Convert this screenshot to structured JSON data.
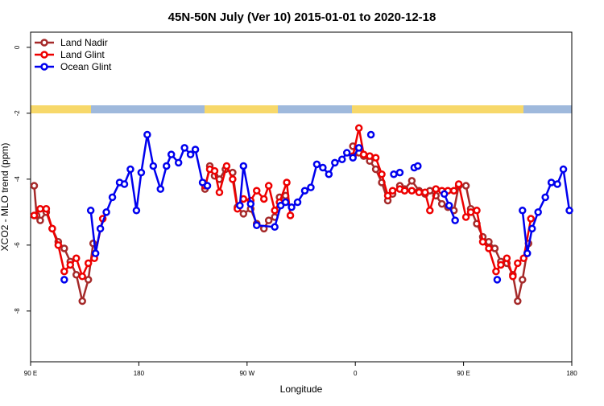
{
  "chart_data": {
    "type": "line",
    "title": "45N-50N July (Ver 10)   2015-01-01 to 2020-12-18",
    "x_label": "Longitude",
    "y_label": "XCO2 - MLO trend (ppm)",
    "xlim": [
      90,
      540
    ],
    "ylim": [
      -9.54,
      0.46
    ],
    "xticks": [
      {
        "value": 90,
        "label": "90 E"
      },
      {
        "value": 180,
        "label": "180"
      },
      {
        "value": 270,
        "label": "90 W"
      },
      {
        "value": 360,
        "label": "0"
      },
      {
        "value": 450,
        "label": "90 E"
      },
      {
        "value": 540,
        "label": "180"
      }
    ],
    "yticks": [
      0,
      -2,
      -4,
      -6,
      -8
    ],
    "legend": "top-left",
    "series": [
      {
        "name": "Land Nadir",
        "color": "#a52a2a",
        "x": [
          93,
          95,
          98,
          103,
          108,
          113,
          118,
          123,
          128,
          133,
          138,
          142,
          null,
          235,
          239,
          243,
          247,
          252,
          258,
          262,
          267,
          273,
          278,
          284,
          288,
          293,
          297,
          302,
          null,
          358,
          363,
          367,
          372,
          377,
          382,
          387,
          391,
          397,
          401,
          407,
          413,
          418,
          422,
          427,
          432,
          437,
          442,
          446,
          452,
          456,
          461,
          466,
          471,
          476,
          481,
          486,
          491,
          495,
          499,
          504
        ],
        "values": [
          -4.2,
          -5.1,
          -5.25,
          -5.0,
          -5.5,
          -5.9,
          -6.1,
          -6.5,
          -6.9,
          -7.7,
          -7.05,
          -5.95,
          null,
          -4.3,
          -3.6,
          -3.9,
          -4.0,
          -3.7,
          -3.8,
          -4.85,
          -5.05,
          -4.9,
          -5.35,
          -5.5,
          -5.25,
          -5.15,
          -4.55,
          -4.5,
          null,
          -3.0,
          -3.2,
          -3.3,
          -3.45,
          -3.7,
          -4.1,
          -4.65,
          -4.45,
          -4.2,
          -4.3,
          -4.05,
          -4.35,
          -4.45,
          -4.35,
          -4.5,
          -4.75,
          -4.85,
          -4.95,
          -4.2,
          -4.2,
          -4.9,
          -5.35,
          -5.75,
          -5.9,
          -6.1,
          -6.5,
          -6.55,
          -6.9,
          -7.7,
          -7.05,
          -5.95
        ]
      },
      {
        "name": "Land Glint",
        "color": "#ee0000",
        "x": [
          93,
          98,
          103,
          108,
          113,
          118,
          123,
          128,
          133,
          138,
          143,
          150,
          null,
          235,
          239,
          243,
          247,
          253,
          258,
          262,
          267,
          273,
          278,
          284,
          288,
          293,
          297,
          303,
          306,
          null,
          358,
          363,
          367,
          372,
          377,
          382,
          387,
          391,
          397,
          401,
          407,
          413,
          418,
          422,
          427,
          432,
          437,
          442,
          446,
          452,
          456,
          461,
          466,
          471,
          477,
          481,
          486,
          491,
          495,
          500,
          506
        ],
        "values": [
          -5.1,
          -4.9,
          -4.9,
          -5.5,
          -6.0,
          -6.8,
          -6.6,
          -6.4,
          -6.95,
          -6.55,
          -6.4,
          -5.2,
          null,
          -4.2,
          -3.7,
          -3.75,
          -4.4,
          -3.6,
          -4.0,
          -4.9,
          -4.6,
          -4.65,
          -4.35,
          -4.6,
          -4.2,
          -4.95,
          -4.7,
          -4.1,
          -5.1,
          null,
          -3.3,
          -2.45,
          -3.25,
          -3.3,
          -3.35,
          -3.85,
          -4.5,
          -4.35,
          -4.3,
          -4.35,
          -4.35,
          -4.4,
          -4.4,
          -4.95,
          -4.3,
          -4.35,
          -4.35,
          -4.35,
          -4.15,
          -5.15,
          -5.0,
          -4.95,
          -5.9,
          -6.1,
          -6.8,
          -6.6,
          -6.4,
          -6.95,
          -6.55,
          -6.4,
          -5.2
        ]
      },
      {
        "name": "Ocean Glint",
        "color": "#0000ee",
        "x": [
          118,
          null,
          140,
          144,
          148,
          153,
          158,
          164,
          168,
          173,
          178,
          182,
          187,
          192,
          198,
          203,
          207,
          213,
          218,
          223,
          227,
          233,
          237,
          null,
          264,
          267,
          273,
          278,
          293,
          298,
          302,
          307,
          312,
          318,
          323,
          328,
          333,
          338,
          343,
          349,
          353,
          358,
          363,
          null,
          373,
          null,
          392,
          397,
          null,
          409,
          412,
          null,
          434,
          438,
          443,
          null,
          478,
          null,
          499,
          503,
          507,
          512,
          518,
          523,
          528,
          533,
          538
        ],
        "values": [
          -7.05,
          null,
          -4.95,
          -6.25,
          -5.5,
          -5.0,
          -4.55,
          -4.1,
          -4.15,
          -3.7,
          -4.95,
          -3.8,
          -2.65,
          -3.6,
          -4.3,
          -3.6,
          -3.25,
          -3.5,
          -3.05,
          -3.25,
          -3.1,
          -4.1,
          -4.2,
          null,
          -4.8,
          -3.6,
          -4.75,
          -5.4,
          -5.45,
          -4.8,
          -4.7,
          -4.85,
          -4.7,
          -4.35,
          -4.25,
          -3.55,
          -3.65,
          -3.85,
          -3.5,
          -3.4,
          -3.2,
          -3.35,
          -3.05,
          null,
          -2.65,
          null,
          -3.85,
          -3.8,
          null,
          -3.65,
          -3.6,
          null,
          -4.45,
          -4.8,
          -5.25,
          null,
          -7.05,
          null,
          -4.95,
          -6.25,
          -5.5,
          -5.0,
          -4.55,
          -4.1,
          -4.15,
          -3.7,
          -4.95
        ]
      }
    ]
  }
}
